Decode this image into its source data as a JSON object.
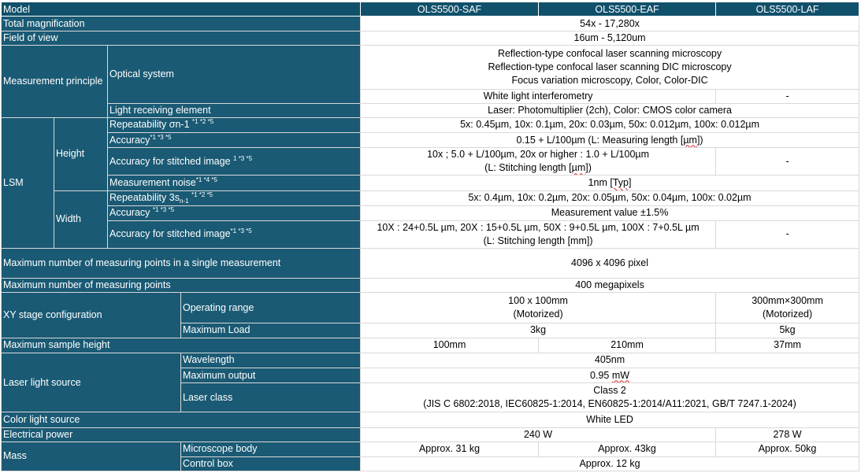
{
  "header": {
    "model": "Model",
    "saf": "OLS5500-SAF",
    "eaf": "OLS5500-EAF",
    "laf": "OLS5500-LAF"
  },
  "total_magnification": {
    "label": "Total magnification",
    "value": "54x - 17,280x"
  },
  "field_of_view": {
    "label": "Field of view",
    "value": "16um - 5,120um"
  },
  "measurement_principle": {
    "label": "Measurement principle",
    "optical_system": {
      "label": "Optical system",
      "line1": "Reflection-type confocal laser scanning microscopy",
      "line2": "Reflection-type confocal laser scanning DIC microscopy",
      "line3": "Focus variation microscopy, Color, Color-DIC",
      "wli_label": "White light interferometry",
      "wli_laf": "-"
    },
    "light_receiving": {
      "label": "Light receiving element",
      "value": "Laser: Photomultiplier (2ch), Color: CMOS color camera"
    }
  },
  "lsm": {
    "label": "LSM",
    "height": {
      "label": "Height",
      "repeatability": {
        "label": "Repeatability σn-1",
        "notes": "*1 *2 *5",
        "value": "5x: 0.45µm, 10x: 0.1µm, 20x: 0.03µm, 50x: 0.012µm, 100x: 0.012µm"
      },
      "accuracy": {
        "label": "Accuracy",
        "notes": "*1 *3 *5",
        "value_a": "0.15 + L/100µm  (L: Measuring length [",
        "value_unit": "µm",
        "value_b": "])"
      },
      "stitched": {
        "label": "Accuracy for stitched image ",
        "notes": "1 *3 *5",
        "line1": "10x ; 5.0 + L/100µm, 20x or higher : 1.0 + L/100µm",
        "line2_a": "(L: Stitching length [",
        "line2_unit": "µm",
        "line2_b": "])",
        "laf": "-"
      },
      "noise": {
        "label": "Measurement noise",
        "notes": "*1 *4 *5",
        "value_a": "1nm ",
        "value_b": "[Typ]"
      }
    },
    "width": {
      "label": "Width",
      "repeatability": {
        "label": "Repeatability 3s",
        "sub": "n-1",
        "notes": "*1 *2 *5",
        "value": "5x: 0.4µm, 10x: 0.2µm, 20x: 0.05µm, 50x: 0.04µm, 100x: 0.02µm"
      },
      "accuracy": {
        "label": "Accuracy",
        "notes": "*1 *3 *5",
        "value": "Measurement value ±1.5%"
      },
      "stitched": {
        "label": "Accuracy for stitched image",
        "notes": "*1 *3 *5",
        "line1": "10X : 24+0.5L µm, 20X : 15+0.5L µm, 50X : 9+0.5L µm, 100X : 7+0.5L µm",
        "line2": "(L: Stitching length [mm])",
        "laf": "-"
      }
    }
  },
  "max_points_single": {
    "label": "Maximum number of measuring points in a single measurement",
    "value": "4096 x 4096 pixel"
  },
  "max_points": {
    "label": "Maximum number of measuring points",
    "value": "400 megapixels"
  },
  "xy_stage": {
    "label": "XY stage configuration",
    "operating_range": {
      "label": "Operating range",
      "saf_eaf_1": "100 x 100mm",
      "saf_eaf_2": "(Motorized)",
      "laf_1": "300mm×300mm",
      "laf_2": "(Motorized)"
    },
    "max_load": {
      "label": "Maximum Load",
      "saf_eaf": "3kg",
      "laf": "5kg"
    }
  },
  "max_sample_height": {
    "label": "Maximum sample height",
    "saf": "100mm",
    "eaf": "210mm",
    "laf": "37mm"
  },
  "laser": {
    "label": "Laser light source",
    "wavelength": {
      "label": "Wavelength",
      "value": "405nm"
    },
    "max_output": {
      "label": "Maximum output",
      "value_a": "0.95 ",
      "value_b": "mW"
    },
    "laser_class": {
      "label": "Laser class",
      "line1": "Class 2",
      "line2": "(JIS C 6802:2018, IEC60825-1:2014, EN60825-1:2014/A11:2021, GB/T 7247.1-2024)"
    }
  },
  "color_light": {
    "label": "Color light source",
    "value": "White LED"
  },
  "electrical_power": {
    "label": "Electrical power",
    "saf_eaf": "240 W",
    "laf": "278 W"
  },
  "mass": {
    "label": "Mass",
    "body": {
      "label": "Microscope body",
      "saf": "Approx. 31 kg",
      "eaf": "Approx. 43kg",
      "laf": "Approx. 50kg"
    },
    "control": {
      "label": "Control box",
      "value": "Approx. 12 kg"
    }
  }
}
